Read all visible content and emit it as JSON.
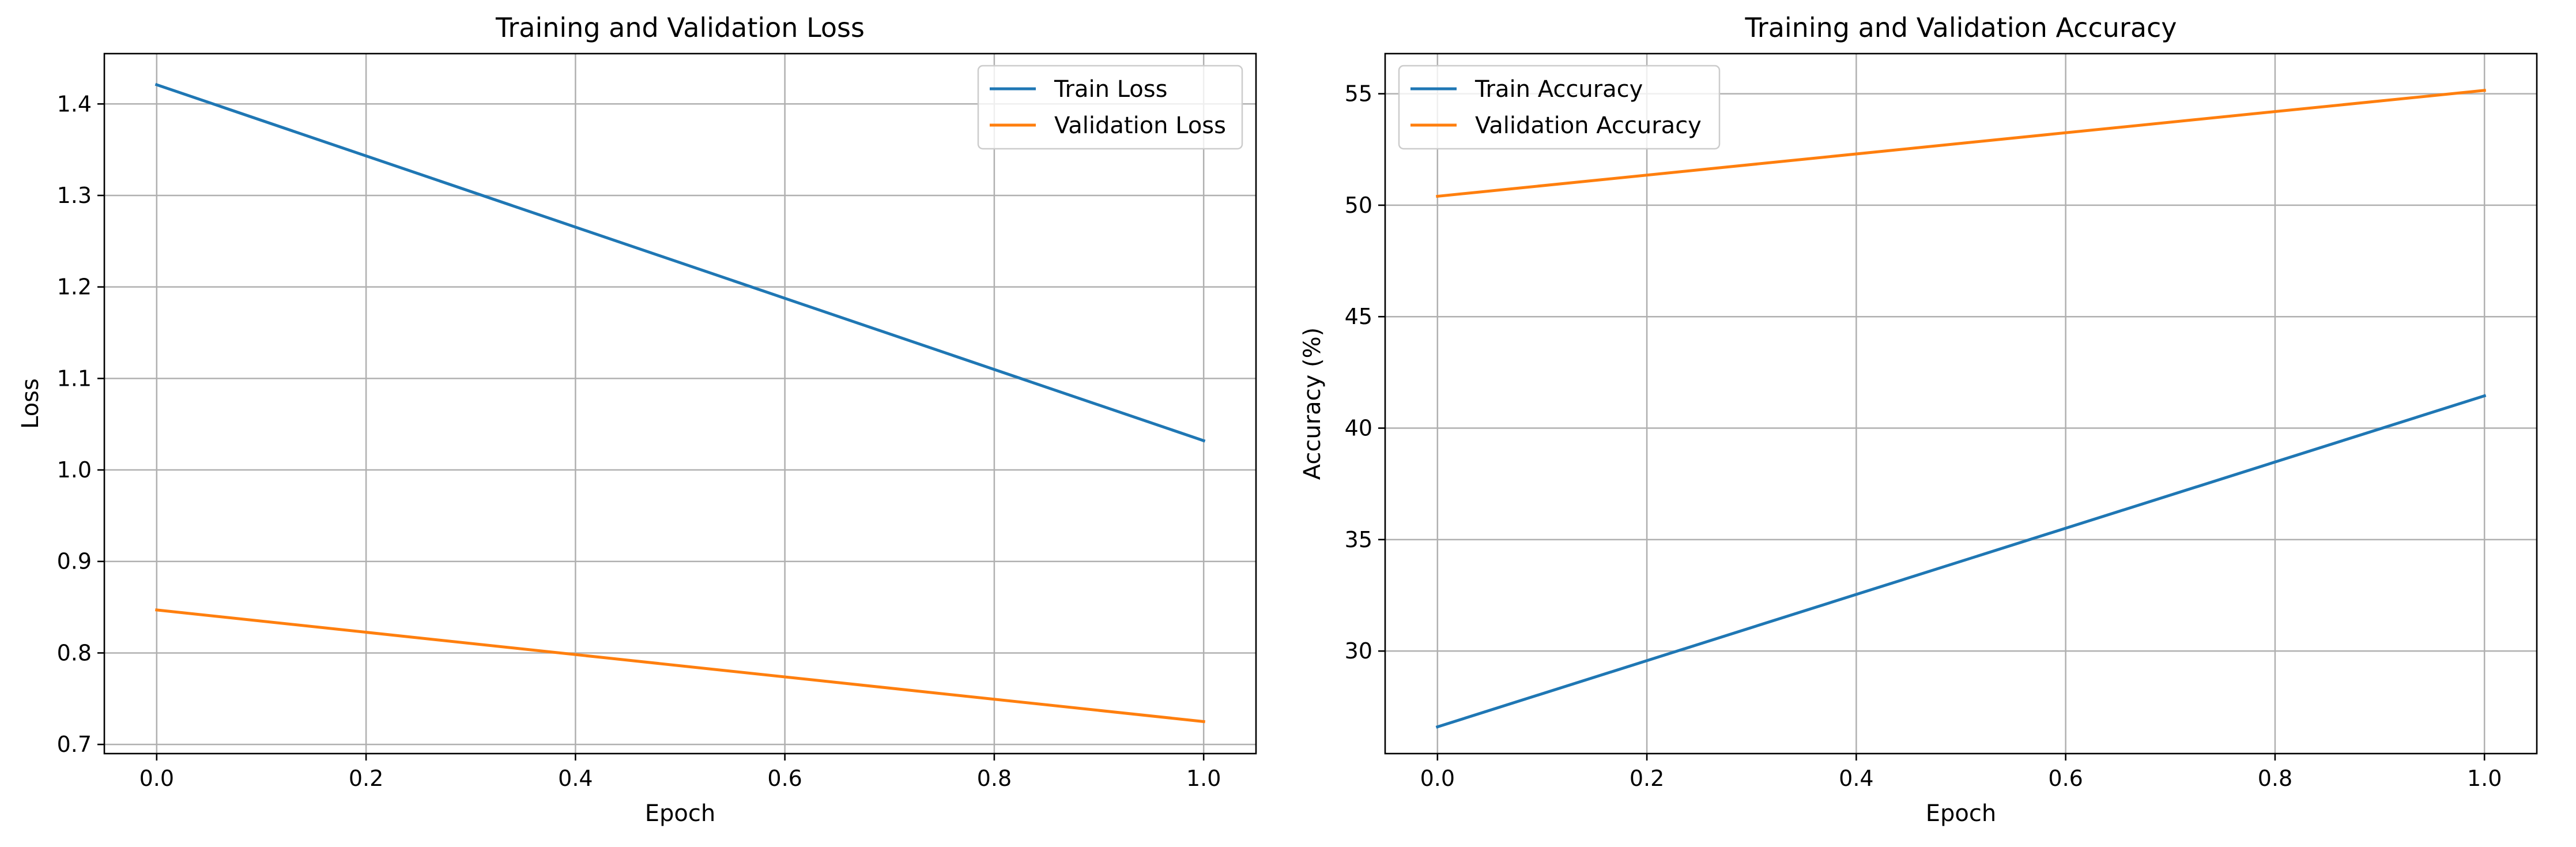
{
  "chart_data": [
    {
      "type": "line",
      "title": "Training and Validation Loss",
      "xlabel": "Epoch",
      "ylabel": "Loss",
      "xlim": [
        -0.05,
        1.05
      ],
      "ylim": [
        0.69,
        1.455
      ],
      "xticks": [
        0.0,
        0.2,
        0.4,
        0.6,
        0.8,
        1.0
      ],
      "xtick_labels": [
        "0.0",
        "0.2",
        "0.4",
        "0.6",
        "0.8",
        "1.0"
      ],
      "yticks": [
        0.7,
        0.8,
        0.9,
        1.0,
        1.1,
        1.2,
        1.3,
        1.4
      ],
      "ytick_labels": [
        "0.7",
        "0.8",
        "0.9",
        "1.0",
        "1.1",
        "1.2",
        "1.3",
        "1.4"
      ],
      "grid": true,
      "legend_position": "top-right",
      "x": [
        0,
        1
      ],
      "series": [
        {
          "name": "Train Loss",
          "values": [
            1.421,
            1.032
          ],
          "color": "#1f77b4"
        },
        {
          "name": "Validation Loss",
          "values": [
            0.847,
            0.725
          ],
          "color": "#ff7f0e"
        }
      ]
    },
    {
      "type": "line",
      "title": "Training and Validation Accuracy",
      "xlabel": "Epoch",
      "ylabel": "Accuracy (%)",
      "xlim": [
        -0.05,
        1.05
      ],
      "ylim": [
        25.4,
        56.8
      ],
      "xticks": [
        0.0,
        0.2,
        0.4,
        0.6,
        0.8,
        1.0
      ],
      "xtick_labels": [
        "0.0",
        "0.2",
        "0.4",
        "0.6",
        "0.8",
        "1.0"
      ],
      "yticks": [
        30,
        35,
        40,
        45,
        50,
        55
      ],
      "ytick_labels": [
        "30",
        "35",
        "40",
        "45",
        "50",
        "55"
      ],
      "grid": true,
      "legend_position": "top-left",
      "x": [
        0,
        1
      ],
      "series": [
        {
          "name": "Train Accuracy",
          "values": [
            26.6,
            41.45
          ],
          "color": "#1f77b4"
        },
        {
          "name": "Validation Accuracy",
          "values": [
            50.4,
            55.15
          ],
          "color": "#ff7f0e"
        }
      ]
    }
  ]
}
